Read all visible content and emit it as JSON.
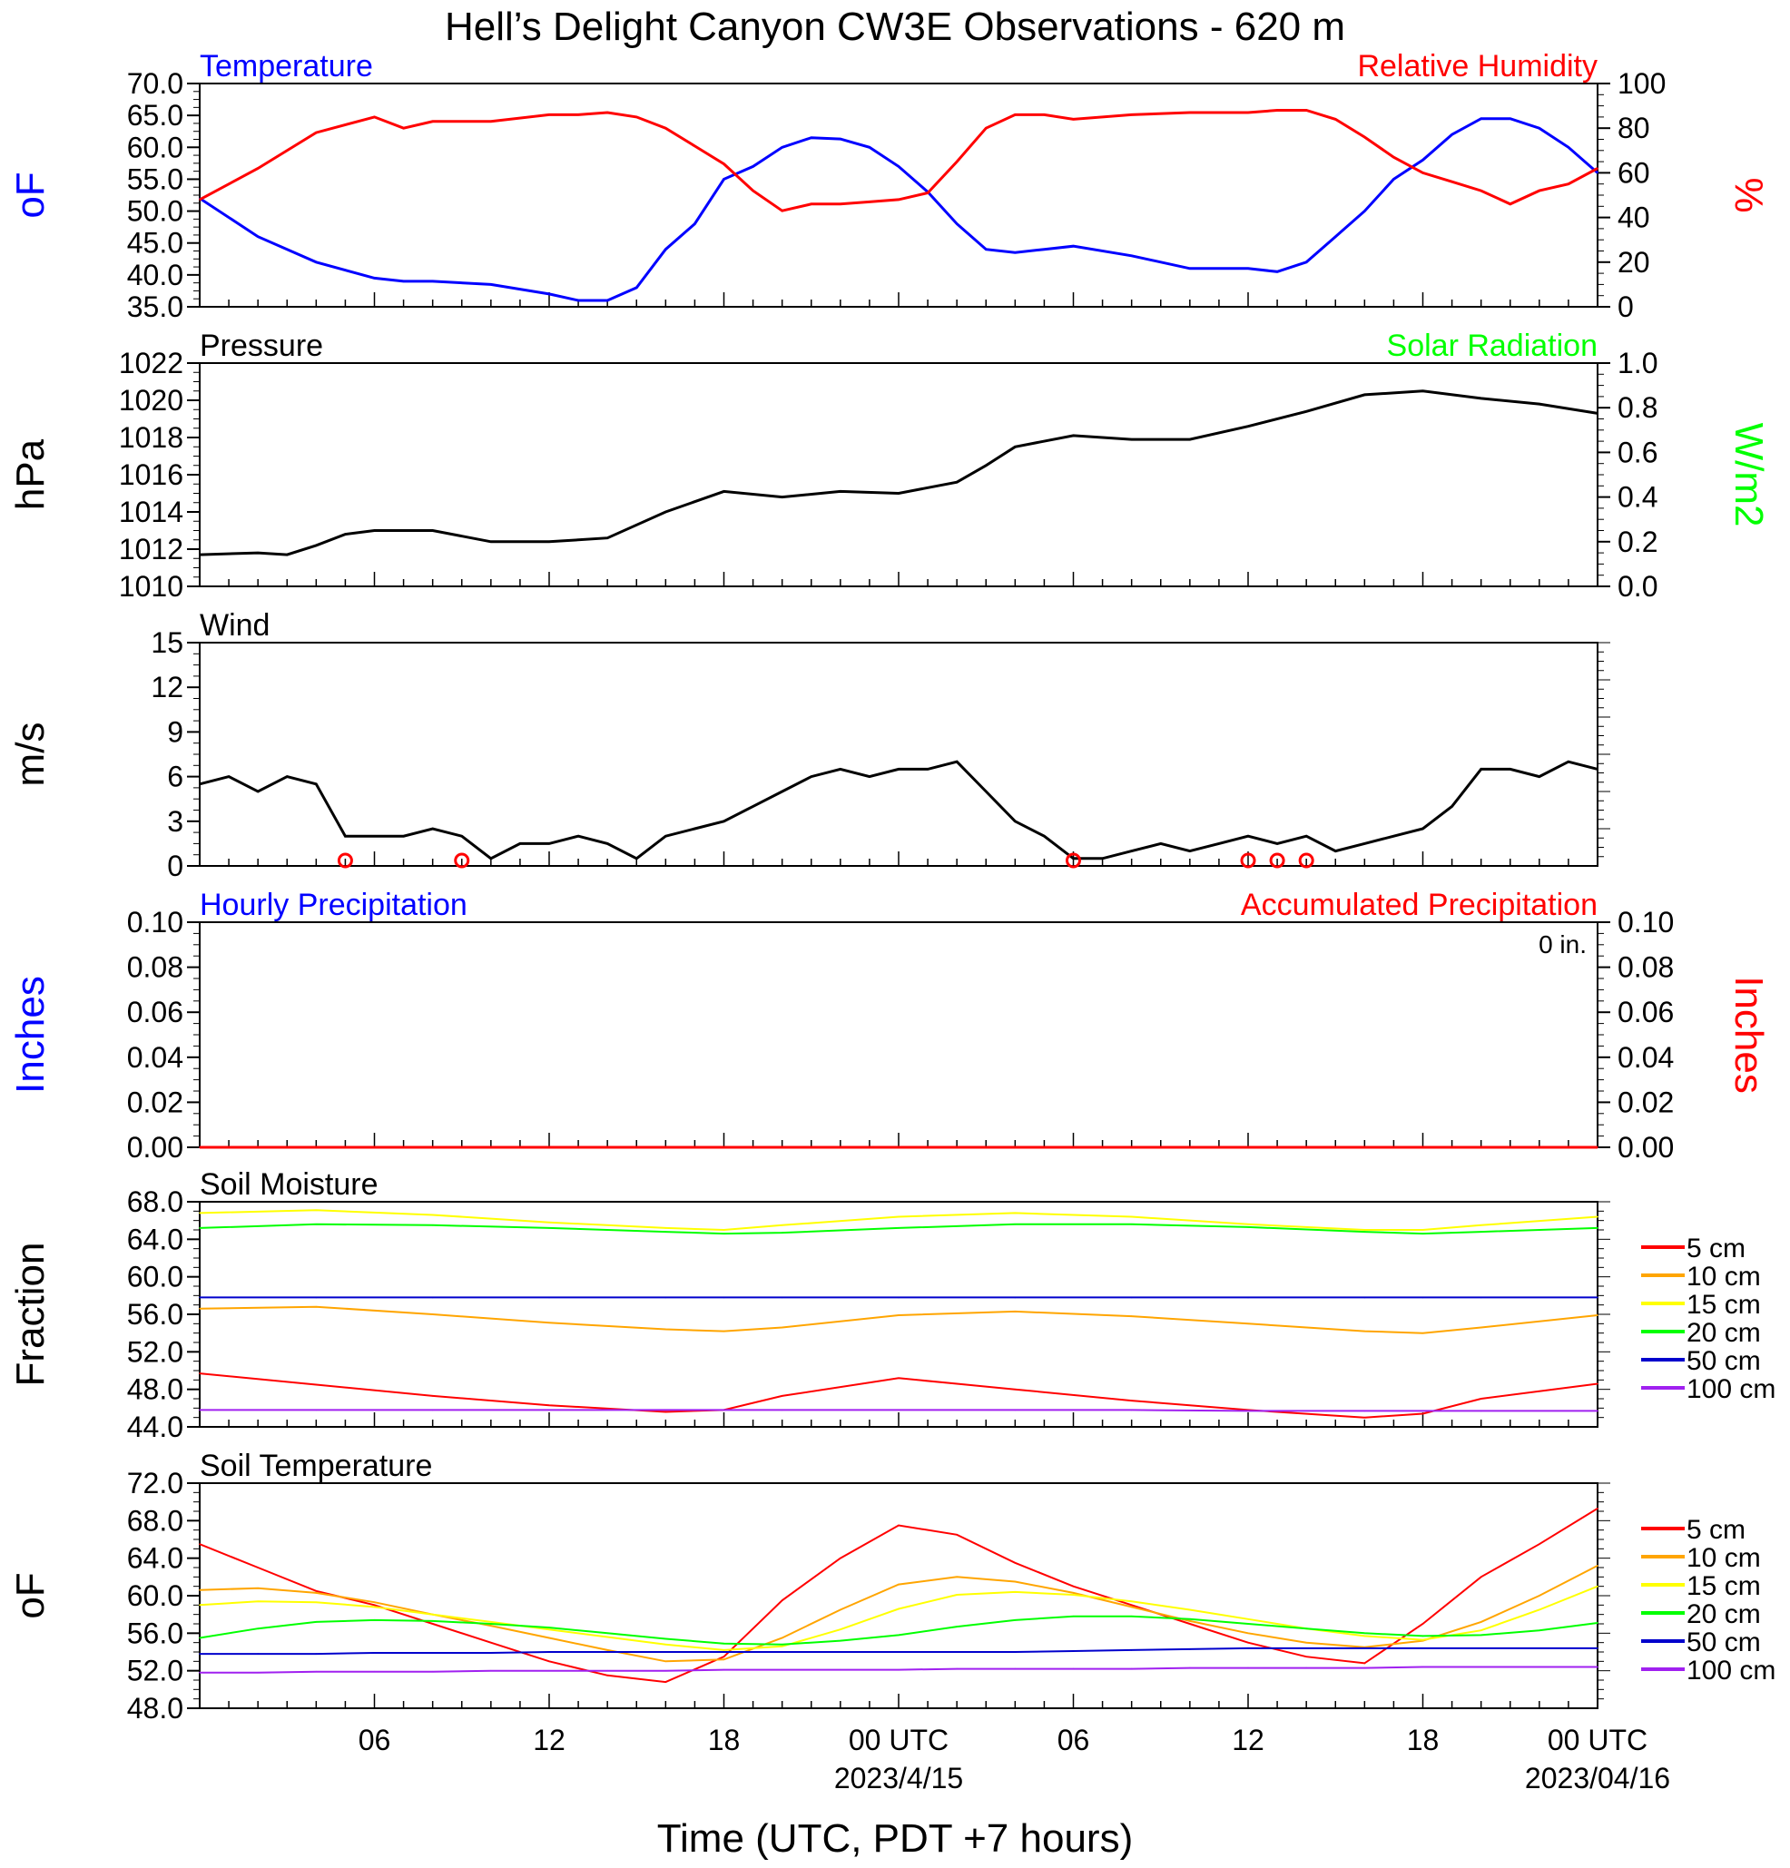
{
  "title": "Hell’s Delight Canyon CW3E Observations - 620 m",
  "xaxis": {
    "label": "Time (UTC, PDT +7 hours)",
    "ticks": [
      "06",
      "12",
      "18",
      "00 UTC",
      "06",
      "12",
      "18",
      "00 UTC"
    ],
    "dates": [
      "2023/4/15",
      "2023/04/16"
    ]
  },
  "colors": {
    "blue": "#0000ff",
    "red": "#ff0000",
    "green": "#00ff00",
    "black": "#000000",
    "orange": "#ffa500",
    "yellow": "#ffff00",
    "navy": "#0000cc",
    "purple": "#a020f0"
  },
  "chart_data": [
    {
      "type": "line",
      "title": "Temperature / Relative Humidity",
      "left_label": "Temperature",
      "right_label": "Relative Humidity",
      "ylabel_left": "oF",
      "ylabel_right": "%",
      "ylim_left": [
        35,
        70
      ],
      "ylim_right": [
        0,
        100
      ],
      "yticks_left": [
        "70.0",
        "65.0",
        "60.0",
        "55.0",
        "50.0",
        "45.0",
        "40.0",
        "35.0"
      ],
      "yticks_right": [
        "100",
        "80",
        "60",
        "40",
        "20",
        "0"
      ],
      "x_hours": [
        0,
        2,
        4,
        6,
        7,
        8,
        10,
        12,
        13,
        14,
        15,
        16,
        17,
        18,
        19,
        20,
        21,
        22,
        23,
        24,
        25,
        26,
        27,
        28,
        29,
        30,
        32,
        34,
        36,
        37,
        38,
        39,
        40,
        41,
        42,
        43,
        44,
        45,
        46,
        47,
        48
      ],
      "series": [
        {
          "name": "Temperature",
          "axis": "left",
          "values": [
            52,
            46,
            42,
            39.5,
            39,
            39,
            38.5,
            37,
            36,
            36,
            38,
            44,
            48,
            55,
            57,
            60,
            61.5,
            61.3,
            60,
            57,
            53,
            48,
            44,
            43.5,
            44,
            44.5,
            43,
            41,
            41,
            40.5,
            42,
            46,
            50,
            55,
            58,
            62,
            64.5,
            64.5,
            63,
            60,
            56
          ]
        },
        {
          "name": "Relative Humidity",
          "axis": "left_scaled_right",
          "values_pct": [
            48,
            62,
            78,
            85,
            80,
            83,
            83,
            86,
            86,
            87,
            85,
            80,
            72,
            64,
            52,
            43,
            46,
            46,
            47,
            48,
            51,
            65,
            80,
            86,
            86,
            84,
            86,
            87,
            87,
            88,
            88,
            84,
            76,
            67,
            60,
            56,
            52,
            46,
            52,
            55,
            62
          ]
        }
      ]
    },
    {
      "type": "line",
      "title": "Pressure",
      "left_label": "Pressure",
      "right_label": "Solar Radiation",
      "ylabel_left": "hPa",
      "ylabel_right": "W/m2",
      "ylim_left": [
        1010,
        1022
      ],
      "ylim_right": [
        0,
        1.0
      ],
      "yticks_left": [
        "1022",
        "1020",
        "1018",
        "1016",
        "1014",
        "1012",
        "1010"
      ],
      "yticks_right": [
        "1.0",
        "0.8",
        "0.6",
        "0.4",
        "0.2",
        "0.0"
      ],
      "x_hours": [
        0,
        2,
        3,
        4,
        5,
        6,
        8,
        10,
        12,
        14,
        16,
        18,
        20,
        22,
        24,
        26,
        27,
        28,
        30,
        32,
        34,
        36,
        38,
        40,
        42,
        44,
        46,
        48
      ],
      "series": [
        {
          "name": "Pressure",
          "values": [
            1011.7,
            1011.8,
            1011.7,
            1012.2,
            1012.8,
            1013.0,
            1013.0,
            1012.4,
            1012.4,
            1012.6,
            1014.0,
            1015.1,
            1014.8,
            1015.1,
            1015.0,
            1015.6,
            1016.5,
            1017.5,
            1018.1,
            1017.9,
            1017.9,
            1018.6,
            1019.4,
            1020.3,
            1020.5,
            1020.1,
            1019.8,
            1019.3
          ]
        }
      ]
    },
    {
      "type": "line",
      "title": "Wind",
      "left_label": "Wind",
      "ylabel_left": "m/s",
      "ylim_left": [
        0,
        15
      ],
      "yticks_left": [
        "15",
        "12",
        "9",
        "6",
        "3",
        "0"
      ],
      "x_hours": [
        0,
        1,
        2,
        3,
        4,
        5,
        6,
        7,
        8,
        9,
        10,
        11,
        12,
        13,
        14,
        15,
        16,
        17,
        18,
        19,
        20,
        21,
        22,
        23,
        24,
        25,
        26,
        27,
        28,
        29,
        30,
        31,
        32,
        33,
        34,
        35,
        36,
        37,
        38,
        39,
        40,
        41,
        42,
        43,
        44,
        45,
        46,
        47,
        48
      ],
      "series": [
        {
          "name": "Wind speed",
          "values": [
            5.5,
            6,
            5,
            6,
            5.5,
            2,
            2,
            2,
            2.5,
            2,
            0.5,
            1.5,
            1.5,
            2,
            1.5,
            0.5,
            2,
            2.5,
            3,
            4,
            5,
            6,
            6.5,
            6,
            6.5,
            6.5,
            7,
            5,
            3,
            2,
            0.5,
            0.5,
            1,
            1.5,
            1,
            1.5,
            2,
            1.5,
            2,
            1,
            1.5,
            2,
            2.5,
            4,
            6.5,
            6.5,
            6,
            7,
            6.5
          ]
        }
      ],
      "calm_markers_hours": [
        5,
        9,
        30,
        36,
        37,
        38
      ]
    },
    {
      "type": "line",
      "title": "Hourly Precipitation / Accumulated Precipitation",
      "left_label": "Hourly Precipitation",
      "right_label": "Accumulated Precipitation",
      "annotation": "0 in.",
      "ylabel_left": "Inches",
      "ylabel_right": "Inches",
      "ylim_left": [
        0,
        0.1
      ],
      "ylim_right": [
        0,
        0.1
      ],
      "yticks_left": [
        "0.10",
        "0.08",
        "0.06",
        "0.04",
        "0.02",
        "0.00"
      ],
      "yticks_right": [
        "0.10",
        "0.08",
        "0.06",
        "0.04",
        "0.02",
        "0.00"
      ],
      "x_hours": [
        0,
        48
      ],
      "series": [
        {
          "name": "Hourly Precipitation",
          "values": [
            0,
            0
          ]
        },
        {
          "name": "Accumulated Precipitation",
          "values": [
            0,
            0
          ]
        }
      ]
    },
    {
      "type": "line",
      "title": "Soil Moisture",
      "left_label": "Soil Moisture",
      "ylabel_left": "Fraction",
      "ylim_left": [
        44,
        68
      ],
      "yticks_left": [
        "68.0",
        "64.0",
        "60.0",
        "56.0",
        "52.0",
        "48.0",
        "44.0"
      ],
      "legend": [
        "5 cm",
        "10 cm",
        "15 cm",
        "20 cm",
        "50 cm",
        "100 cm"
      ],
      "x_hours": [
        0,
        4,
        8,
        12,
        16,
        18,
        20,
        24,
        28,
        32,
        36,
        40,
        42,
        44,
        48
      ],
      "series": [
        {
          "name": "5 cm",
          "values": [
            49.7,
            48.5,
            47.3,
            46.3,
            45.6,
            45.8,
            47.3,
            49.2,
            48.0,
            46.8,
            45.8,
            45.0,
            45.4,
            47.0,
            48.6
          ]
        },
        {
          "name": "10 cm",
          "values": [
            56.6,
            56.8,
            56.0,
            55.1,
            54.4,
            54.2,
            54.6,
            55.9,
            56.3,
            55.8,
            55.0,
            54.2,
            54.0,
            54.6,
            55.9
          ]
        },
        {
          "name": "15 cm",
          "values": [
            66.8,
            67.1,
            66.6,
            65.8,
            65.2,
            65.0,
            65.5,
            66.4,
            66.8,
            66.4,
            65.6,
            65.0,
            65.0,
            65.5,
            66.4
          ]
        },
        {
          "name": "20 cm",
          "values": [
            65.2,
            65.6,
            65.5,
            65.2,
            64.8,
            64.6,
            64.7,
            65.2,
            65.6,
            65.6,
            65.3,
            64.8,
            64.6,
            64.8,
            65.2
          ]
        },
        {
          "name": "50 cm",
          "values": [
            57.8,
            57.8,
            57.8,
            57.8,
            57.8,
            57.8,
            57.8,
            57.8,
            57.8,
            57.8,
            57.8,
            57.8,
            57.8,
            57.8,
            57.8
          ]
        },
        {
          "name": "100 cm",
          "values": [
            45.8,
            45.8,
            45.8,
            45.8,
            45.8,
            45.8,
            45.8,
            45.8,
            45.8,
            45.8,
            45.7,
            45.7,
            45.7,
            45.7,
            45.7
          ]
        }
      ]
    },
    {
      "type": "line",
      "title": "Soil Temperature",
      "left_label": "Soil Temperature",
      "ylabel_left": "oF",
      "ylim_left": [
        48,
        72
      ],
      "yticks_left": [
        "72.0",
        "68.0",
        "64.0",
        "60.0",
        "56.0",
        "52.0",
        "48.0"
      ],
      "legend": [
        "5 cm",
        "10 cm",
        "15 cm",
        "20 cm",
        "50 cm",
        "100 cm"
      ],
      "x_hours": [
        0,
        2,
        4,
        6,
        8,
        10,
        12,
        14,
        16,
        18,
        20,
        22,
        24,
        26,
        28,
        30,
        32,
        34,
        36,
        38,
        40,
        42,
        44,
        46,
        48
      ],
      "series": [
        {
          "name": "5 cm",
          "values": [
            65.5,
            63,
            60.5,
            59,
            57,
            55,
            53,
            51.5,
            50.8,
            53.5,
            59.5,
            64,
            67.5,
            66.5,
            63.5,
            61,
            59,
            57,
            55,
            53.5,
            52.8,
            57,
            62,
            65.5,
            69.3
          ]
        },
        {
          "name": "10 cm",
          "values": [
            60.6,
            60.8,
            60.3,
            59.3,
            58,
            56.8,
            55.5,
            54.2,
            53,
            53.2,
            55.5,
            58.5,
            61.2,
            62,
            61.5,
            60.3,
            58.8,
            57.3,
            56,
            55,
            54.5,
            55.2,
            57.2,
            60,
            63.2
          ]
        },
        {
          "name": "15 cm",
          "values": [
            59,
            59.4,
            59.3,
            58.8,
            58,
            57.2,
            56.4,
            55.6,
            54.8,
            54.2,
            54.6,
            56.4,
            58.6,
            60.1,
            60.4,
            60.1,
            59.4,
            58.5,
            57.5,
            56.5,
            55.7,
            55.3,
            56.3,
            58.5,
            61
          ]
        },
        {
          "name": "20 cm",
          "values": [
            55.5,
            56.5,
            57.2,
            57.4,
            57.3,
            57,
            56.6,
            56,
            55.4,
            54.9,
            54.8,
            55.2,
            55.8,
            56.7,
            57.4,
            57.8,
            57.8,
            57.5,
            57,
            56.5,
            56,
            55.7,
            55.8,
            56.3,
            57.1
          ]
        },
        {
          "name": "50 cm",
          "values": [
            53.8,
            53.8,
            53.8,
            53.9,
            53.9,
            53.9,
            54,
            54,
            54,
            54,
            54,
            54,
            54,
            54,
            54,
            54.1,
            54.2,
            54.3,
            54.4,
            54.4,
            54.4,
            54.4,
            54.4,
            54.4,
            54.4
          ]
        },
        {
          "name": "100 cm",
          "values": [
            51.8,
            51.8,
            51.9,
            51.9,
            51.9,
            52,
            52,
            52,
            52,
            52.1,
            52.1,
            52.1,
            52.1,
            52.2,
            52.2,
            52.2,
            52.2,
            52.3,
            52.3,
            52.3,
            52.3,
            52.4,
            52.4,
            52.4,
            52.4
          ]
        }
      ]
    }
  ]
}
